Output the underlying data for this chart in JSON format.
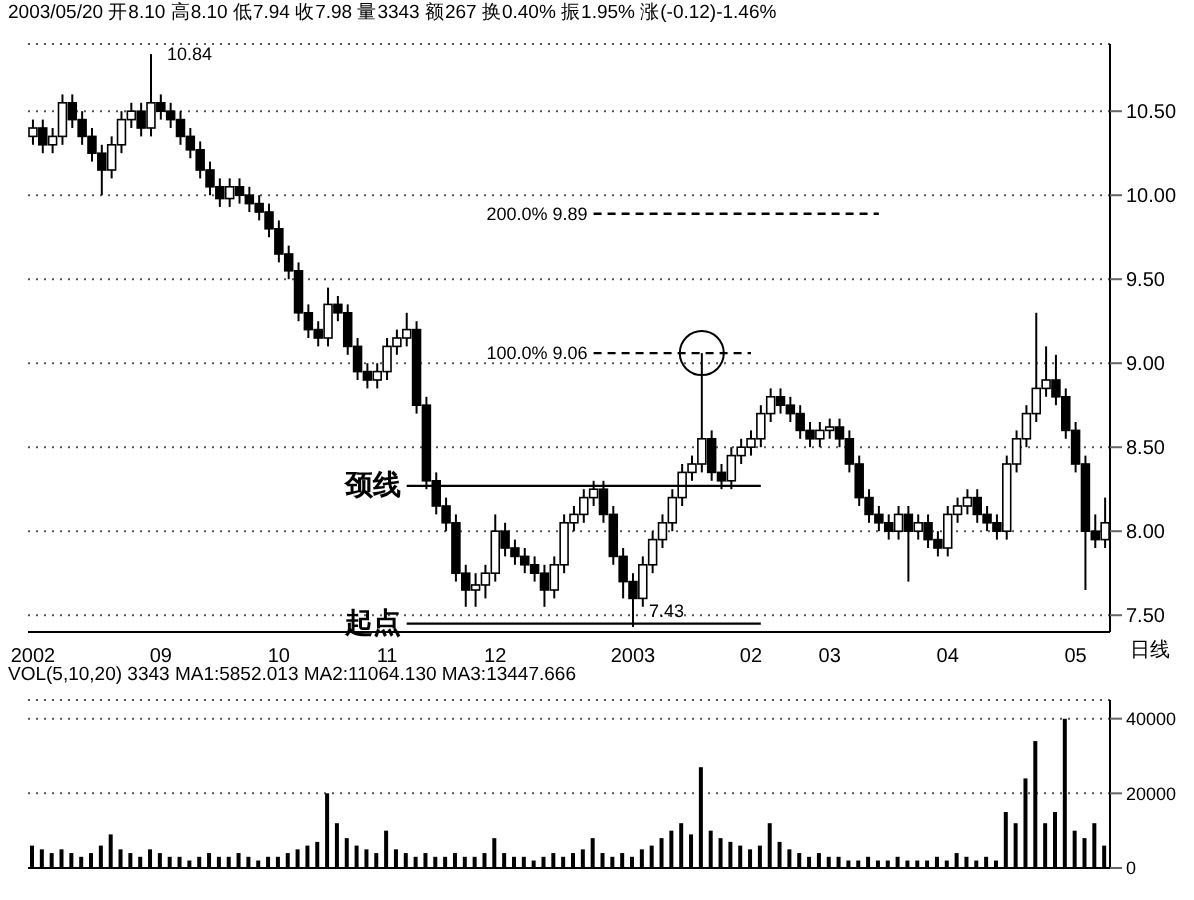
{
  "chart_data": [
    {
      "type": "candlestick",
      "categories": [
        "2002",
        null,
        null,
        null,
        null,
        null,
        null,
        null,
        null,
        null,
        null,
        null,
        null,
        "09",
        null,
        null,
        null,
        null,
        null,
        null,
        null,
        null,
        null,
        null,
        null,
        "10",
        null,
        null,
        null,
        null,
        null,
        null,
        null,
        null,
        null,
        null,
        "11",
        null,
        null,
        null,
        null,
        null,
        null,
        null,
        null,
        null,
        null,
        "12",
        null,
        null,
        null,
        null,
        null,
        null,
        null,
        null,
        null,
        null,
        null,
        null,
        null,
        "2003",
        null,
        null,
        null,
        null,
        null,
        null,
        null,
        null,
        null,
        null,
        null,
        "02",
        null,
        null,
        null,
        null,
        null,
        null,
        null,
        "03",
        null,
        null,
        null,
        null,
        null,
        null,
        null,
        null,
        null,
        null,
        null,
        "04",
        null,
        null,
        null,
        null,
        null,
        null,
        null,
        null,
        null,
        null,
        null,
        null,
        "05",
        null,
        null,
        null
      ],
      "ohlc": [
        [
          10.35,
          10.45,
          10.3,
          10.4
        ],
        [
          10.4,
          10.45,
          10.25,
          10.3
        ],
        [
          10.3,
          10.4,
          10.25,
          10.35
        ],
        [
          10.35,
          10.6,
          10.3,
          10.55
        ],
        [
          10.55,
          10.6,
          10.4,
          10.45
        ],
        [
          10.45,
          10.5,
          10.3,
          10.35
        ],
        [
          10.35,
          10.4,
          10.2,
          10.25
        ],
        [
          10.25,
          10.3,
          10.0,
          10.15
        ],
        [
          10.15,
          10.35,
          10.1,
          10.3
        ],
        [
          10.3,
          10.5,
          10.25,
          10.45
        ],
        [
          10.45,
          10.55,
          10.4,
          10.5
        ],
        [
          10.5,
          10.55,
          10.35,
          10.4
        ],
        [
          10.4,
          10.84,
          10.35,
          10.55
        ],
        [
          10.55,
          10.6,
          10.45,
          10.5
        ],
        [
          10.5,
          10.55,
          10.4,
          10.45
        ],
        [
          10.45,
          10.5,
          10.3,
          10.35
        ],
        [
          10.35,
          10.4,
          10.22,
          10.27
        ],
        [
          10.27,
          10.32,
          10.1,
          10.15
        ],
        [
          10.15,
          10.2,
          10.0,
          10.05
        ],
        [
          10.05,
          10.1,
          9.93,
          9.98
        ],
        [
          9.98,
          10.1,
          9.93,
          10.05
        ],
        [
          10.05,
          10.1,
          9.95,
          10.0
        ],
        [
          10.0,
          10.05,
          9.9,
          9.95
        ],
        [
          9.95,
          10.0,
          9.85,
          9.9
        ],
        [
          9.9,
          9.95,
          9.75,
          9.8
        ],
        [
          9.8,
          9.85,
          9.6,
          9.65
        ],
        [
          9.65,
          9.7,
          9.5,
          9.55
        ],
        [
          9.55,
          9.6,
          9.25,
          9.3
        ],
        [
          9.3,
          9.35,
          9.15,
          9.2
        ],
        [
          9.2,
          9.25,
          9.1,
          9.15
        ],
        [
          9.15,
          9.45,
          9.1,
          9.35
        ],
        [
          9.35,
          9.4,
          9.25,
          9.3
        ],
        [
          9.3,
          9.35,
          9.05,
          9.1
        ],
        [
          9.1,
          9.15,
          8.9,
          8.95
        ],
        [
          8.95,
          9.0,
          8.85,
          8.9
        ],
        [
          8.9,
          9.0,
          8.85,
          8.95
        ],
        [
          8.95,
          9.15,
          8.9,
          9.1
        ],
        [
          9.1,
          9.2,
          9.05,
          9.15
        ],
        [
          9.15,
          9.3,
          9.1,
          9.2
        ],
        [
          9.2,
          9.25,
          8.7,
          8.75
        ],
        [
          8.75,
          8.8,
          8.25,
          8.3
        ],
        [
          8.3,
          8.35,
          8.1,
          8.15
        ],
        [
          8.15,
          8.2,
          8.0,
          8.05
        ],
        [
          8.05,
          8.1,
          7.7,
          7.75
        ],
        [
          7.75,
          7.8,
          7.55,
          7.65
        ],
        [
          7.65,
          7.75,
          7.55,
          7.68
        ],
        [
          7.68,
          7.8,
          7.6,
          7.75
        ],
        [
          7.75,
          8.1,
          7.7,
          8.0
        ],
        [
          8.0,
          8.05,
          7.85,
          7.9
        ],
        [
          7.9,
          7.95,
          7.8,
          7.85
        ],
        [
          7.85,
          7.9,
          7.75,
          7.8
        ],
        [
          7.8,
          7.85,
          7.7,
          7.75
        ],
        [
          7.75,
          7.8,
          7.55,
          7.65
        ],
        [
          7.65,
          7.85,
          7.6,
          7.8
        ],
        [
          7.8,
          8.1,
          7.75,
          8.05
        ],
        [
          8.05,
          8.15,
          8.0,
          8.1
        ],
        [
          8.1,
          8.25,
          8.05,
          8.2
        ],
        [
          8.2,
          8.3,
          8.15,
          8.25
        ],
        [
          8.25,
          8.3,
          8.05,
          8.1
        ],
        [
          8.1,
          8.15,
          7.8,
          7.85
        ],
        [
          7.85,
          7.9,
          7.6,
          7.7
        ],
        [
          7.7,
          7.75,
          7.43,
          7.6
        ],
        [
          7.6,
          7.85,
          7.55,
          7.8
        ],
        [
          7.8,
          8.0,
          7.75,
          7.95
        ],
        [
          7.95,
          8.1,
          7.9,
          8.05
        ],
        [
          8.05,
          8.25,
          8.0,
          8.2
        ],
        [
          8.2,
          8.4,
          8.15,
          8.35
        ],
        [
          8.35,
          8.45,
          8.3,
          8.4
        ],
        [
          8.4,
          9.06,
          8.35,
          8.55
        ],
        [
          8.55,
          8.6,
          8.3,
          8.35
        ],
        [
          8.35,
          8.4,
          8.25,
          8.3
        ],
        [
          8.3,
          8.5,
          8.25,
          8.45
        ],
        [
          8.45,
          8.55,
          8.4,
          8.5
        ],
        [
          8.5,
          8.6,
          8.45,
          8.55
        ],
        [
          8.55,
          8.75,
          8.5,
          8.7
        ],
        [
          8.7,
          8.85,
          8.65,
          8.8
        ],
        [
          8.8,
          8.85,
          8.7,
          8.75
        ],
        [
          8.75,
          8.8,
          8.65,
          8.7
        ],
        [
          8.7,
          8.75,
          8.55,
          8.6
        ],
        [
          8.6,
          8.65,
          8.5,
          8.55
        ],
        [
          8.55,
          8.65,
          8.5,
          8.6
        ],
        [
          8.6,
          8.67,
          8.55,
          8.62
        ],
        [
          8.62,
          8.67,
          8.5,
          8.55
        ],
        [
          8.55,
          8.6,
          8.35,
          8.4
        ],
        [
          8.4,
          8.45,
          8.15,
          8.2
        ],
        [
          8.2,
          8.25,
          8.05,
          8.1
        ],
        [
          8.1,
          8.15,
          8.0,
          8.05
        ],
        [
          8.05,
          8.1,
          7.95,
          8.0
        ],
        [
          8.0,
          8.15,
          7.95,
          8.1
        ],
        [
          8.1,
          8.15,
          7.7,
          8.0
        ],
        [
          8.0,
          8.1,
          7.95,
          8.05
        ],
        [
          8.05,
          8.1,
          7.9,
          7.95
        ],
        [
          7.95,
          8.0,
          7.85,
          7.9
        ],
        [
          7.9,
          8.15,
          7.85,
          8.1
        ],
        [
          8.1,
          8.2,
          8.05,
          8.15
        ],
        [
          8.15,
          8.25,
          8.1,
          8.2
        ],
        [
          8.2,
          8.25,
          8.05,
          8.1
        ],
        [
          8.1,
          8.15,
          8.0,
          8.05
        ],
        [
          8.05,
          8.1,
          7.95,
          8.0
        ],
        [
          8.0,
          8.45,
          7.95,
          8.4
        ],
        [
          8.4,
          8.6,
          8.35,
          8.55
        ],
        [
          8.55,
          8.75,
          8.5,
          8.7
        ],
        [
          8.7,
          9.3,
          8.65,
          8.85
        ],
        [
          8.85,
          9.1,
          8.8,
          8.9
        ],
        [
          8.9,
          9.05,
          8.75,
          8.8
        ],
        [
          8.8,
          8.85,
          8.55,
          8.6
        ],
        [
          8.6,
          8.65,
          8.35,
          8.4
        ],
        [
          8.4,
          8.45,
          7.65,
          8.0
        ],
        [
          8.0,
          8.1,
          7.9,
          7.95
        ],
        [
          7.95,
          8.2,
          7.9,
          8.05
        ]
      ],
      "color": "#000000",
      "ylim": [
        7.4,
        10.9
      ],
      "yticks": [
        {
          "value": 7.5,
          "label": "7.50"
        },
        {
          "value": 8,
          "label": "8.00"
        },
        {
          "value": 8.5,
          "label": "8.50"
        },
        {
          "value": 9,
          "label": "9.00"
        },
        {
          "value": 9.5,
          "label": "9.50"
        },
        {
          "value": 10,
          "label": "10.00"
        },
        {
          "value": 10.5,
          "label": "10.50"
        }
      ],
      "grid": "y",
      "ref_lines": [
        {
          "axis": "y",
          "value": 9.89,
          "label": "200.0% 9.89",
          "line_style": "dashed",
          "color": "#000000"
        },
        {
          "axis": "y",
          "value": 9.06,
          "label": "100.0% 9.06",
          "line_style": "dashed",
          "color": "#000000"
        },
        {
          "axis": "y",
          "value": 8.27,
          "label": "颈线",
          "line_style": "solid",
          "color": "#000000"
        },
        {
          "axis": "y",
          "value": 7.45,
          "label": "起点",
          "line_style": "solid",
          "color": "#000000"
        }
      ],
      "annotations": [
        "2003/05/20 开8.10 高8.10 低7.94 收7.98 量3343 额267 换0.40% 振1.95% 涨(-0.12)-1.46%",
        "10.84",
        "7.43",
        "日线"
      ]
    },
    {
      "type": "bar",
      "title": "VOL(5,10,20) 3343 MA1:5852.013 MA2:11064.130 MA3:13447.666",
      "categories": [
        "2002",
        null,
        null,
        null,
        null,
        null,
        null,
        null,
        null,
        null,
        null,
        null,
        null,
        "09",
        null,
        null,
        null,
        null,
        null,
        null,
        null,
        null,
        null,
        null,
        null,
        "10",
        null,
        null,
        null,
        null,
        null,
        null,
        null,
        null,
        null,
        null,
        "11",
        null,
        null,
        null,
        null,
        null,
        null,
        null,
        null,
        null,
        null,
        "12",
        null,
        null,
        null,
        null,
        null,
        null,
        null,
        null,
        null,
        null,
        null,
        null,
        null,
        "2003",
        null,
        null,
        null,
        null,
        null,
        null,
        null,
        null,
        null,
        null,
        null,
        "02",
        null,
        null,
        null,
        null,
        null,
        null,
        null,
        "03",
        null,
        null,
        null,
        null,
        null,
        null,
        null,
        null,
        null,
        null,
        null,
        "04",
        null,
        null,
        null,
        null,
        null,
        null,
        null,
        null,
        null,
        null,
        null,
        null,
        "05",
        null,
        null,
        null
      ],
      "values": [
        6000,
        5000,
        4000,
        5000,
        4000,
        3000,
        4000,
        6000,
        9000,
        5000,
        4000,
        3000,
        5000,
        4000,
        3000,
        3000,
        2000,
        3000,
        4000,
        3000,
        3000,
        4000,
        3000,
        2000,
        3000,
        3000,
        4000,
        5000,
        6000,
        7000,
        20000,
        12000,
        8000,
        6000,
        5000,
        4000,
        10000,
        5000,
        4000,
        3000,
        4000,
        3000,
        3000,
        4000,
        3000,
        3000,
        4000,
        8000,
        4000,
        3000,
        3000,
        2000,
        3000,
        4000,
        3000,
        4000,
        5000,
        8000,
        4000,
        3000,
        4000,
        3000,
        5000,
        6000,
        8000,
        10000,
        12000,
        9000,
        27000,
        10000,
        8000,
        7000,
        6000,
        5000,
        6000,
        12000,
        7000,
        5000,
        4000,
        3000,
        4000,
        3000,
        3000,
        2000,
        2000,
        3000,
        2000,
        2000,
        3000,
        2000,
        2000,
        2000,
        3000,
        2000,
        4000,
        3000,
        2000,
        3000,
        2000,
        15000,
        12000,
        24000,
        34000,
        12000,
        15000,
        40000,
        10000,
        8000,
        12000,
        6000
      ],
      "color": "#000000",
      "ylim": [
        0,
        45000
      ],
      "yticks": [
        0,
        20000,
        40000
      ],
      "grid": "y",
      "tick_labels": "y"
    }
  ]
}
